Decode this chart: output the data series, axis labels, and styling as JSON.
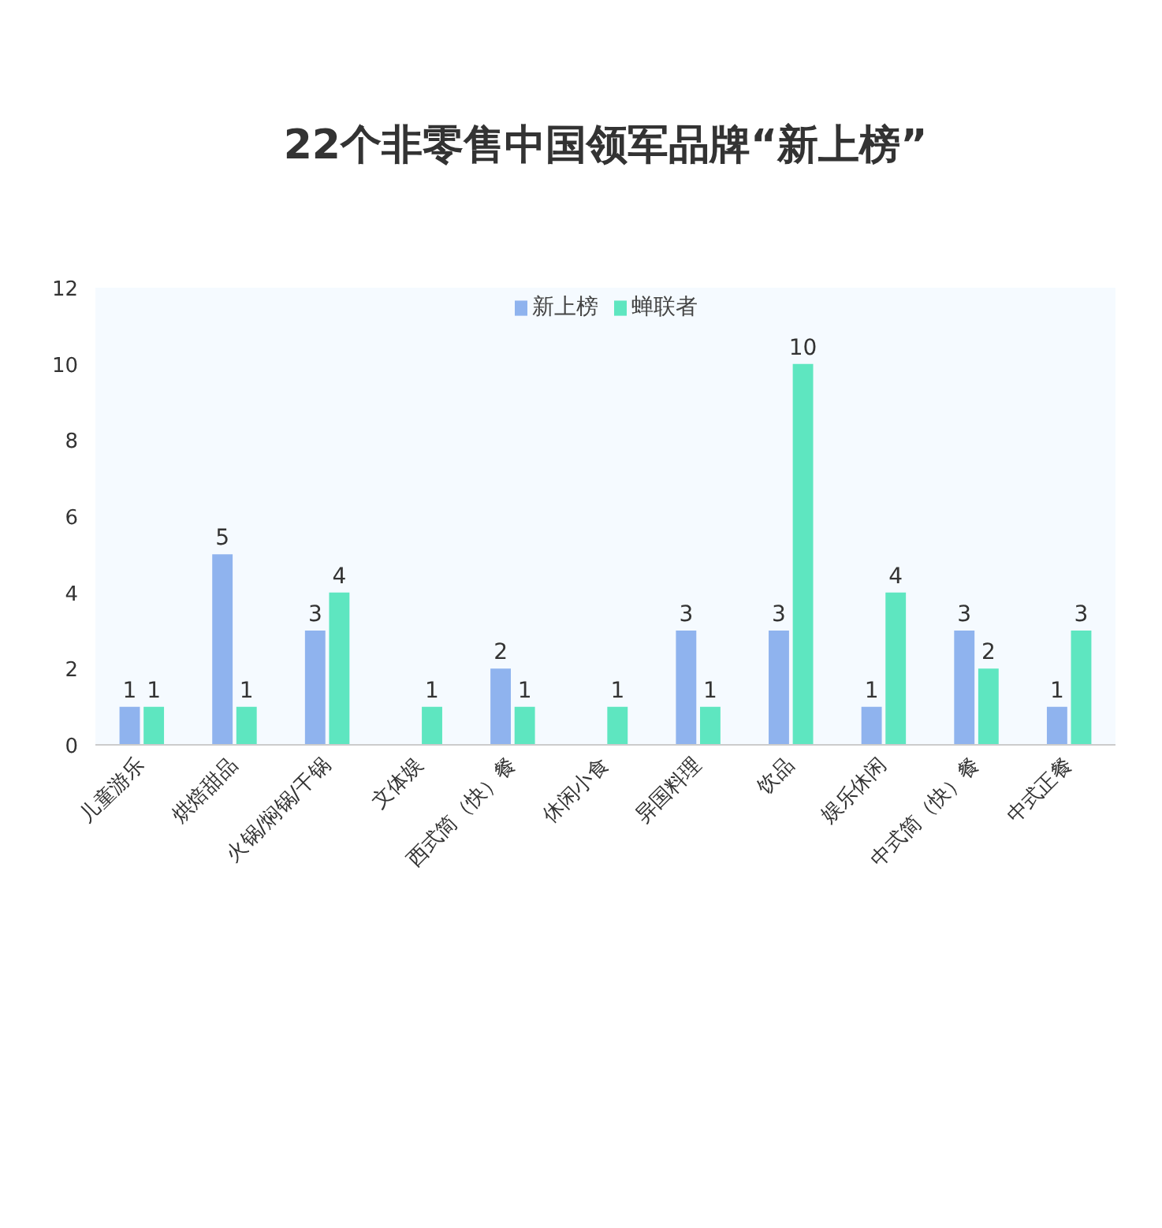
{
  "chart_data": {
    "type": "bar",
    "title": "22个非零售中国领军品牌“新上榜”",
    "categories": [
      "儿童游乐",
      "烘焙甜品",
      "火锅/焖锅/干锅",
      "文体娱",
      "西式简（快）餐",
      "休闲小食",
      "异国料理",
      "饮品",
      "娱乐休闲",
      "中式简（快）餐",
      "中式正餐"
    ],
    "series": [
      {
        "name": "新上榜",
        "color": "#8fb3ee",
        "values": [
          1,
          5,
          3,
          null,
          2,
          null,
          3,
          3,
          1,
          3,
          1
        ]
      },
      {
        "name": "蝉联者",
        "color": "#5ee6c0",
        "values": [
          1,
          1,
          4,
          1,
          1,
          1,
          1,
          10,
          4,
          2,
          3
        ]
      }
    ],
    "ylim": [
      0,
      12
    ],
    "yticks": [
      0,
      2,
      4,
      6,
      8,
      10,
      12
    ],
    "grid": false,
    "legend": "top",
    "data_labels": true
  }
}
